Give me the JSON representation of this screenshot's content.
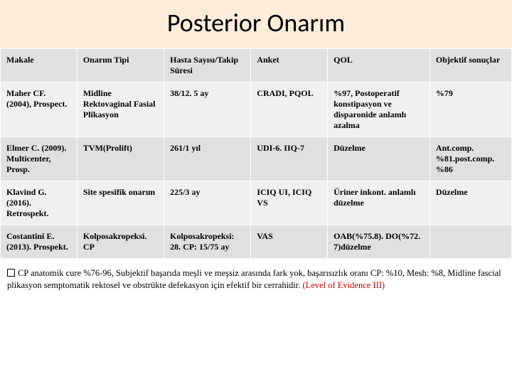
{
  "title": "Posterior Onarım",
  "table": {
    "columns": [
      "Makale",
      "Onarım Tipi",
      "Hasta Sayısı/Takip Süresi",
      "Anket",
      "QOL",
      "Objektif sonuçlar"
    ],
    "rows": [
      [
        "Maher CF. (2004), Prospect.",
        "Midline Rektovaginal Fasial Plikasyon",
        "38/12. 5 ay",
        "CRADI, PQOL",
        "%97, Postoperatif konstipasyon ve disparonide anlamlı azalma",
        "%79"
      ],
      [
        "Elmer C. (2009). Multicenter, Prosp.",
        "TVM(Prolift)",
        "261/1 yıl",
        "UDI-6. IIQ-7",
        "Düzelme",
        "Ant.comp. %81.post.comp. %86"
      ],
      [
        "Klavind G. (2016). Retrospekt.",
        "Site spesifik onarım",
        "225/3 ay",
        "ICIQ UI, ICIQ VS",
        "Üriner inkont. anlamlı düzelme",
        "Düzelme"
      ],
      [
        "Costantini E. (2013). Prospekt.",
        "Kolposakropeksi. CP",
        "Kolposakropeksi: 28. CP: 15/75 ay",
        "VAS",
        "OAB(%75.8). DO(%72. 7)düzelme",
        ""
      ]
    ],
    "header_bg": "#dee0e2",
    "row_colors": [
      "#eff0f1",
      "#dee0e2"
    ],
    "font_size": 12
  },
  "footnote": {
    "lead": "CP anatomik cure %76-96, Subjektif başarıda meşli ve meşsiz arasında fark yok, başarısızlık oranı CP: %10, Mesh: %8, Midline fascial plikasyon semptomatik rektosel ve obstrükte defekasyon için efektif bir cerrahidir.",
    "evidence": " (Level of Evidence III)"
  }
}
